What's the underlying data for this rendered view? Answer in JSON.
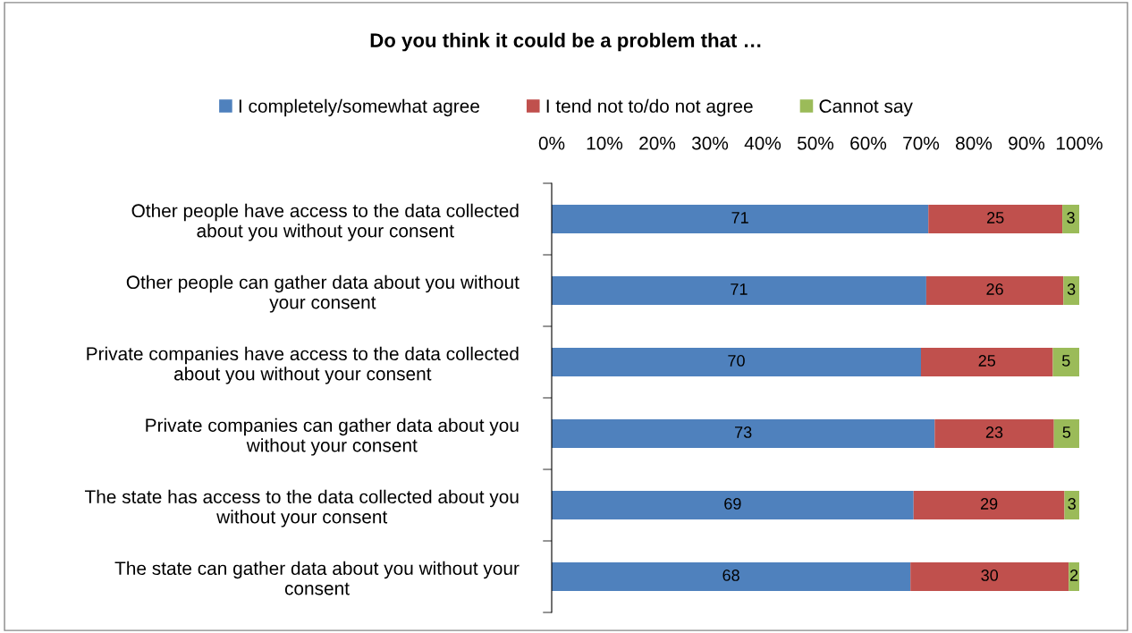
{
  "chart_data": {
    "type": "bar",
    "orientation": "horizontal",
    "stacked": true,
    "title": "Do you think it could be a problem that …",
    "categories": [
      "Other people have access to the data collected\nabout you without your consent",
      "Other people can gather data about you without\nyour consent",
      "Private companies have access to the data collected\nabout you without your consent",
      "Private companies can gather data about you\nwithout your consent",
      "The state has access to the data collected about you\nwithout your consent",
      "The state can gather data about you without your\nconsent"
    ],
    "series": [
      {
        "name": "I completely/somewhat agree",
        "color": "#4f81bd",
        "values": [
          71.4,
          71,
          70,
          72.6,
          68.6,
          68
        ],
        "value_labels": [
          "71",
          "71",
          "70",
          "73",
          "69",
          "68"
        ]
      },
      {
        "name": "I tend not to/do not agree",
        "color": "#c0504d",
        "values": [
          25.4,
          26,
          25,
          22.6,
          28.6,
          30
        ],
        "value_labels": [
          "25",
          "26",
          "25",
          "23",
          "29",
          "30"
        ]
      },
      {
        "name": "Cannot say",
        "color": "#9bbb59",
        "values": [
          3.2,
          3,
          5,
          4.8,
          2.8,
          2
        ],
        "value_labels": [
          "3",
          "3",
          "5",
          "5",
          "3",
          "2"
        ]
      }
    ],
    "xlim": [
      0,
      100
    ],
    "xticks": [
      {
        "value": 0,
        "label": "0%"
      },
      {
        "value": 10,
        "label": "10%"
      },
      {
        "value": 20,
        "label": "20%"
      },
      {
        "value": 30,
        "label": "30%"
      },
      {
        "value": 40,
        "label": "40%"
      },
      {
        "value": 50,
        "label": "50%"
      },
      {
        "value": 60,
        "label": "60%"
      },
      {
        "value": 70,
        "label": "70%"
      },
      {
        "value": 80,
        "label": "80%"
      },
      {
        "value": 90,
        "label": "90%"
      },
      {
        "value": 100,
        "label": "100%"
      }
    ],
    "grid": false,
    "legend": "top"
  }
}
